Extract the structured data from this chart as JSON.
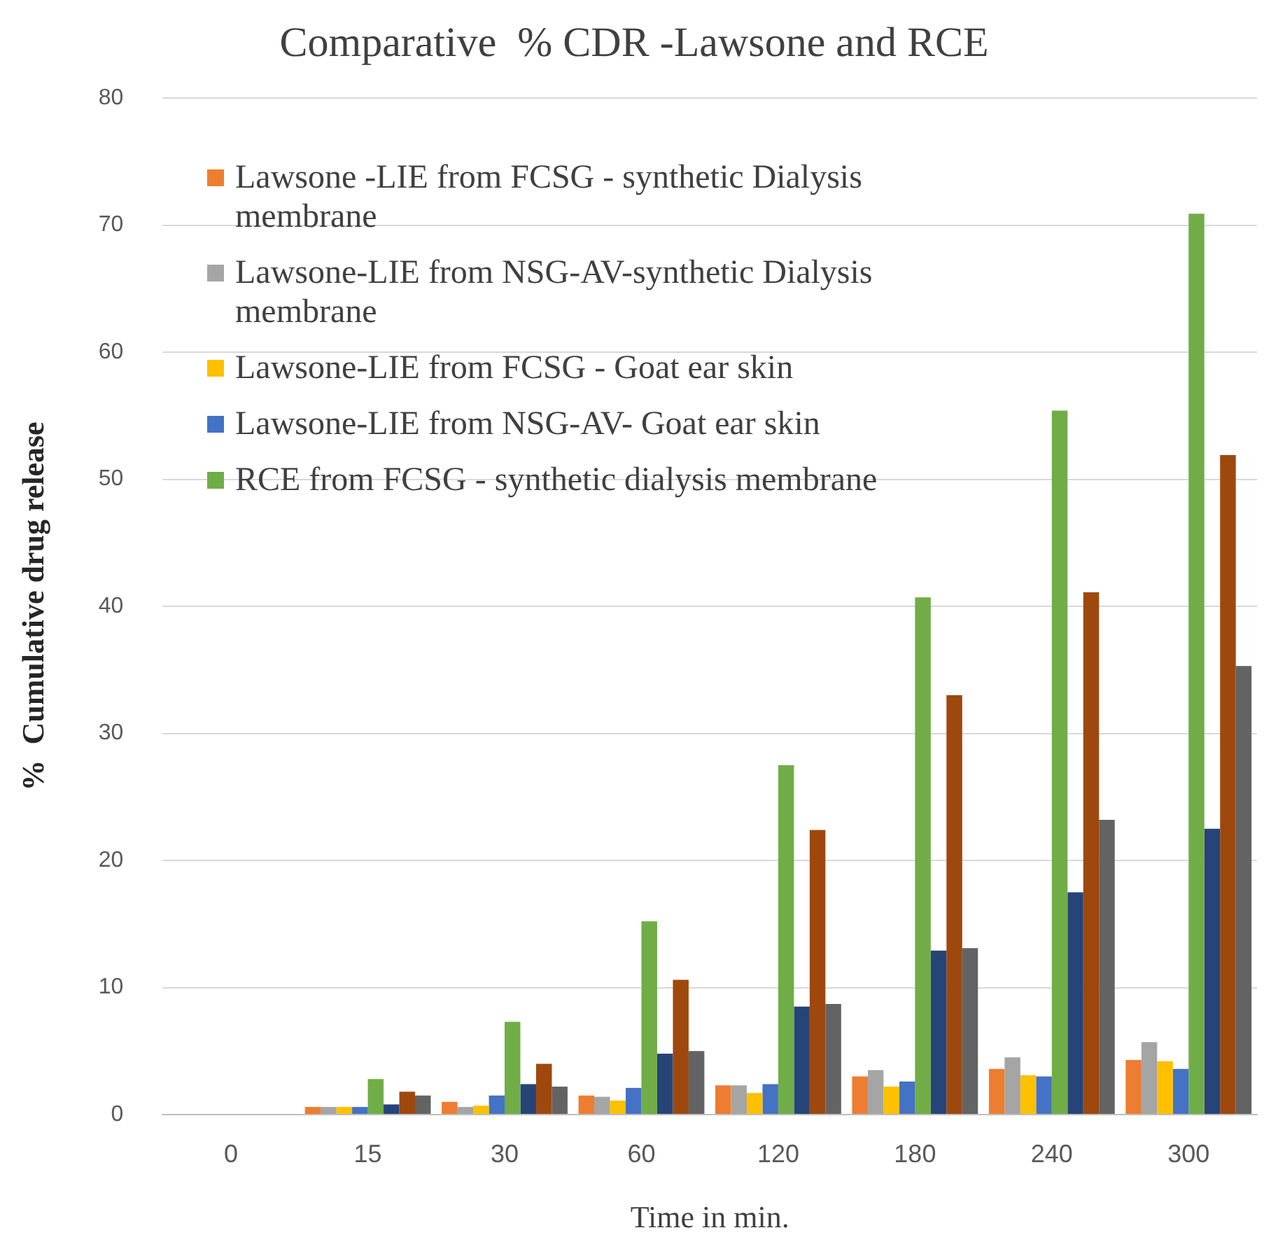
{
  "chart_data": {
    "type": "bar",
    "title": "Comparative  % CDR -Lawsone and RCE",
    "xlabel": "Time in min.",
    "ylabel": "%  Cumulative drug release",
    "categories": [
      "0",
      "15",
      "30",
      "60",
      "120",
      "180",
      "240",
      "300"
    ],
    "series": [
      {
        "name": "Lawsone -LIE from FCSG - synthetic Dialysis membrane",
        "color": "#ed7d31",
        "values": [
          0,
          0.6,
          1.0,
          1.5,
          2.3,
          3.0,
          3.6,
          4.3
        ]
      },
      {
        "name": "Lawsone-LIE from NSG-AV-synthetic Dialysis membrane",
        "color": "#a5a5a5",
        "values": [
          0,
          0.6,
          0.6,
          1.4,
          2.3,
          3.5,
          4.5,
          5.7
        ]
      },
      {
        "name": "Lawsone-LIE from FCSG - Goat ear skin",
        "color": "#ffc000",
        "values": [
          0,
          0.6,
          0.7,
          1.1,
          1.7,
          2.2,
          3.1,
          4.2
        ]
      },
      {
        "name": "Lawsone-LIE from NSG-AV- Goat ear skin",
        "color": "#4472c4",
        "values": [
          0,
          0.6,
          1.5,
          2.1,
          2.4,
          2.6,
          3.0,
          3.6
        ]
      },
      {
        "name": "RCE from FCSG - synthetic dialysis membrane",
        "color": "#70ad47",
        "values": [
          0,
          2.8,
          7.3,
          15.2,
          27.5,
          40.7,
          55.4,
          70.9
        ]
      },
      {
        "color": "#264478",
        "values": [
          0,
          0.8,
          2.4,
          4.8,
          8.5,
          12.9,
          17.5,
          22.5
        ]
      },
      {
        "color": "#9e480e",
        "values": [
          0,
          1.8,
          4.0,
          10.6,
          22.4,
          33.0,
          41.1,
          51.9
        ]
      },
      {
        "color": "#636363",
        "values": [
          0,
          1.5,
          2.2,
          5.0,
          8.7,
          13.1,
          23.2,
          35.3
        ]
      }
    ],
    "ylim": [
      0,
      80
    ],
    "yticks": [
      0,
      10,
      20,
      30,
      40,
      50,
      60,
      70,
      80
    ],
    "grid": "y",
    "legend": "top left"
  }
}
